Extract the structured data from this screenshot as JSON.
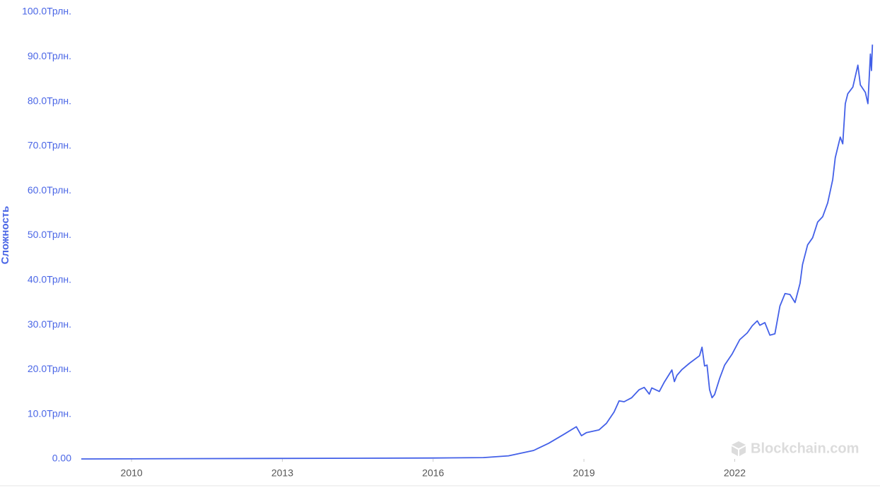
{
  "chart_data": {
    "type": "line",
    "y_label": "Сложность",
    "watermark": "Blockchain.com",
    "color": "#4360e8",
    "grid": false,
    "x": [
      2009.0,
      2016.0,
      2017.0,
      2017.5,
      2018.0,
      2018.3,
      2018.6,
      2018.85,
      2018.95,
      2019.05,
      2019.3,
      2019.45,
      2019.6,
      2019.7,
      2019.8,
      2019.95,
      2020.1,
      2020.2,
      2020.3,
      2020.35,
      2020.5,
      2020.6,
      2020.75,
      2020.8,
      2020.85,
      2020.95,
      2021.1,
      2021.3,
      2021.35,
      2021.4,
      2021.45,
      2021.5,
      2021.55,
      2021.6,
      2021.7,
      2021.8,
      2021.95,
      2022.1,
      2022.25,
      2022.35,
      2022.45,
      2022.5,
      2022.6,
      2022.7,
      2022.8,
      2022.9,
      2023.0,
      2023.1,
      2023.2,
      2023.3,
      2023.35,
      2023.45,
      2023.55,
      2023.65,
      2023.75,
      2023.85,
      2023.95,
      2024.0,
      2024.1,
      2024.15,
      2024.2,
      2024.25,
      2024.35,
      2024.45,
      2024.5,
      2024.6,
      2024.65,
      2024.7,
      2024.72,
      2024.74
    ],
    "values": [
      0,
      0.2,
      0.3,
      0.7,
      1.9,
      3.5,
      5.5,
      7.2,
      5.2,
      5.9,
      6.5,
      8.0,
      10.5,
      13.0,
      12.8,
      13.7,
      15.5,
      16.0,
      14.5,
      15.9,
      15.1,
      17.2,
      19.9,
      17.3,
      18.7,
      20.0,
      21.4,
      23.1,
      25.0,
      20.8,
      21.0,
      15.5,
      13.7,
      14.4,
      18.0,
      21.0,
      23.5,
      26.7,
      28.2,
      29.8,
      30.9,
      29.9,
      30.5,
      27.7,
      28.0,
      34.2,
      37.0,
      36.8,
      35.0,
      39.3,
      43.5,
      47.9,
      49.5,
      53.0,
      54.2,
      57.3,
      62.5,
      67.4,
      72.0,
      70.5,
      79.5,
      81.7,
      83.2,
      88.1,
      83.7,
      82.0,
      79.5,
      90.6,
      86.9,
      92.7
    ],
    "xlim": [
      2009.0,
      2024.75
    ],
    "xticks": [
      2010,
      2013,
      2016,
      2019,
      2022
    ],
    "ylim": [
      0,
      100
    ],
    "yticks": [
      {
        "value": 0,
        "label": "0.00"
      },
      {
        "value": 10,
        "label": "10.0Трлн."
      },
      {
        "value": 20,
        "label": "20.0Трлн."
      },
      {
        "value": 30,
        "label": "30.0Трлн."
      },
      {
        "value": 40,
        "label": "40.0Трлн."
      },
      {
        "value": 50,
        "label": "50.0Трлн."
      },
      {
        "value": 60,
        "label": "60.0Трлн."
      },
      {
        "value": 70,
        "label": "70.0Трлн."
      },
      {
        "value": 80,
        "label": "80.0Трлн."
      },
      {
        "value": 90,
        "label": "90.0Трлн."
      },
      {
        "value": 100,
        "label": "100.0Трлн."
      }
    ]
  }
}
